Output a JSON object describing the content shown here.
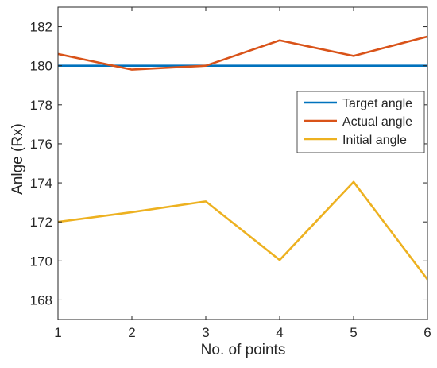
{
  "chart_data": {
    "type": "line",
    "title": "",
    "xlabel": "No. of points",
    "ylabel": "Anlge (Rx)",
    "x": [
      1,
      2,
      3,
      4,
      5,
      6
    ],
    "xlim": [
      1,
      6
    ],
    "ylim": [
      167,
      183
    ],
    "xticks": [
      "1",
      "2",
      "3",
      "4",
      "5",
      "6"
    ],
    "yticks": [
      "168",
      "170",
      "172",
      "174",
      "176",
      "178",
      "180",
      "182"
    ],
    "grid": false,
    "legend_position": "top-right",
    "series": [
      {
        "name": "Target angle",
        "color": "#0072BD",
        "values": [
          180,
          180,
          180,
          180,
          180,
          180
        ]
      },
      {
        "name": "Actual angle",
        "color": "#D95319",
        "values": [
          180.6,
          179.8,
          180.0,
          181.3,
          180.5,
          181.5
        ]
      },
      {
        "name": "Initial angle",
        "color": "#EDB120",
        "values": [
          172.0,
          172.5,
          173.05,
          170.05,
          174.05,
          169.05
        ]
      }
    ]
  }
}
